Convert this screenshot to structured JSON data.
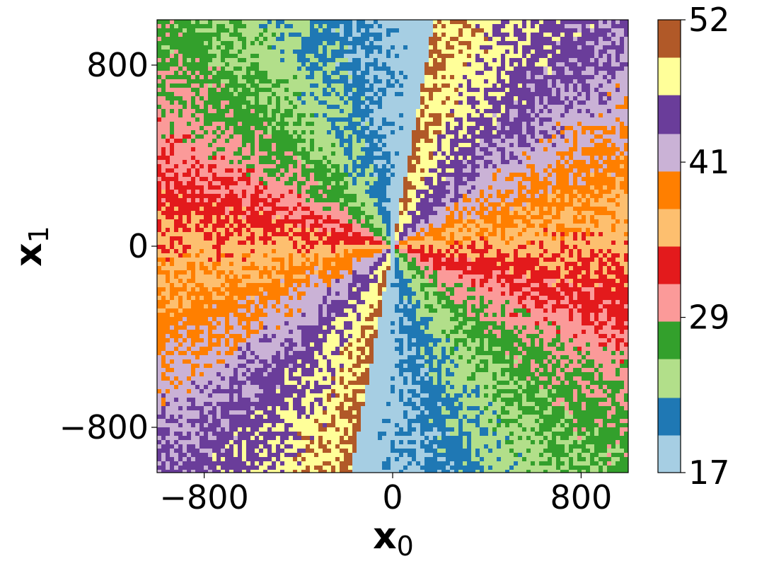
{
  "chart_data": {
    "type": "heatmap",
    "title": "",
    "xlabel": "x",
    "xlabel_sub": "0",
    "ylabel": "x",
    "ylabel_sub": "1",
    "xlim": [
      -1000,
      1000
    ],
    "ylim": [
      -1000,
      1000
    ],
    "xticks": [
      -800,
      0,
      800
    ],
    "yticks": [
      -800,
      0,
      800
    ],
    "xtick_labels": [
      "−800",
      "0",
      "800"
    ],
    "ytick_labels": [
      "−800",
      "0",
      "800"
    ],
    "grid": false,
    "colormap": "Paired",
    "colorbar": {
      "range": [
        17,
        52
      ],
      "levels": [
        17.0,
        19.9,
        22.8,
        25.8,
        28.7,
        31.6,
        34.5,
        37.4,
        40.3,
        43.2,
        46.2,
        49.1,
        52.0
      ],
      "colors": [
        "#a6cee3",
        "#1f78b4",
        "#b2df8a",
        "#33a02c",
        "#fb9a99",
        "#e31a1c",
        "#fdbf6f",
        "#ff7f00",
        "#cab2d6",
        "#6a3d9a",
        "#ffff99",
        "#b15928"
      ],
      "ticks": [
        17,
        29,
        41,
        52
      ],
      "tick_labels": [
        "17",
        "29",
        "41",
        "52"
      ]
    },
    "field": {
      "description": "angular sectors around origin",
      "angle_zero_direction_deg": -100,
      "value_min": 17,
      "value_max": 50,
      "period_deg": 180,
      "noise_amplitude": 2.0
    }
  }
}
